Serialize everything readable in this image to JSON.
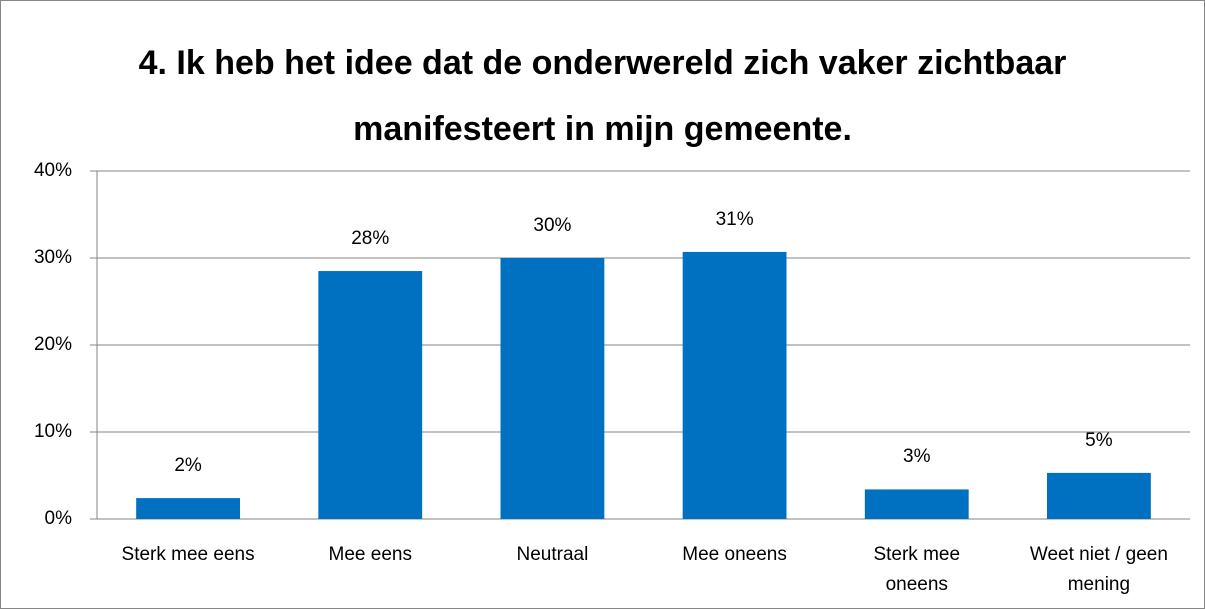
{
  "chart_data": {
    "type": "bar",
    "title": "4. Ik heb het idee dat de onderwereld zich vaker zichtbaar manifesteert in mijn gemeente.",
    "categories": [
      "Sterk mee eens",
      "Mee eens",
      "Neutraal",
      "Mee oneens",
      "Sterk mee oneens",
      "Weet niet / geen mening"
    ],
    "values": [
      2.4,
      28.5,
      30.0,
      30.7,
      3.4,
      5.3
    ],
    "value_labels": [
      "2%",
      "28%",
      "30%",
      "31%",
      "3%",
      "5%"
    ],
    "color": "#0070c0",
    "ylim": [
      0,
      40
    ],
    "yticks": [
      {
        "value": 0,
        "label": "0%"
      },
      {
        "value": 10,
        "label": "10%"
      },
      {
        "value": 20,
        "label": "20%"
      },
      {
        "value": 30,
        "label": "30%"
      },
      {
        "value": 40,
        "label": "40%"
      }
    ],
    "grid": true
  }
}
